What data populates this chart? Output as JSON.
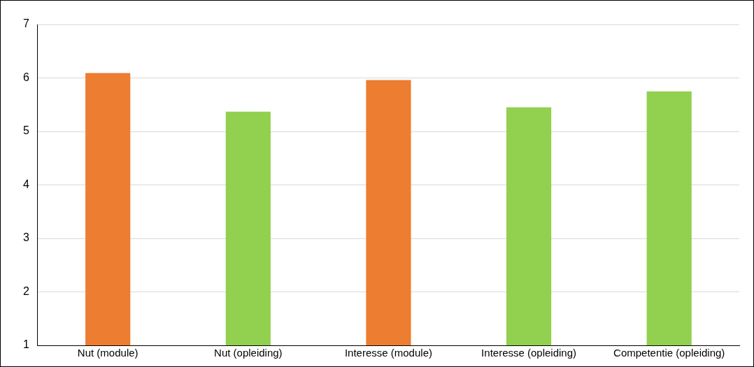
{
  "chart_data": {
    "type": "bar",
    "categories": [
      "Nut (module)",
      "Nut (opleiding)",
      "Interesse (module)",
      "Interesse (opleiding)",
      "Competentie (opleiding)"
    ],
    "values": [
      6.09,
      5.37,
      5.96,
      5.45,
      5.75
    ],
    "colors": [
      "#ed7d31",
      "#92d050",
      "#ed7d31",
      "#92d050",
      "#92d050"
    ],
    "ylim": [
      1,
      7
    ],
    "yticks": [
      1,
      2,
      3,
      4,
      5,
      6,
      7
    ],
    "grid": "y"
  }
}
